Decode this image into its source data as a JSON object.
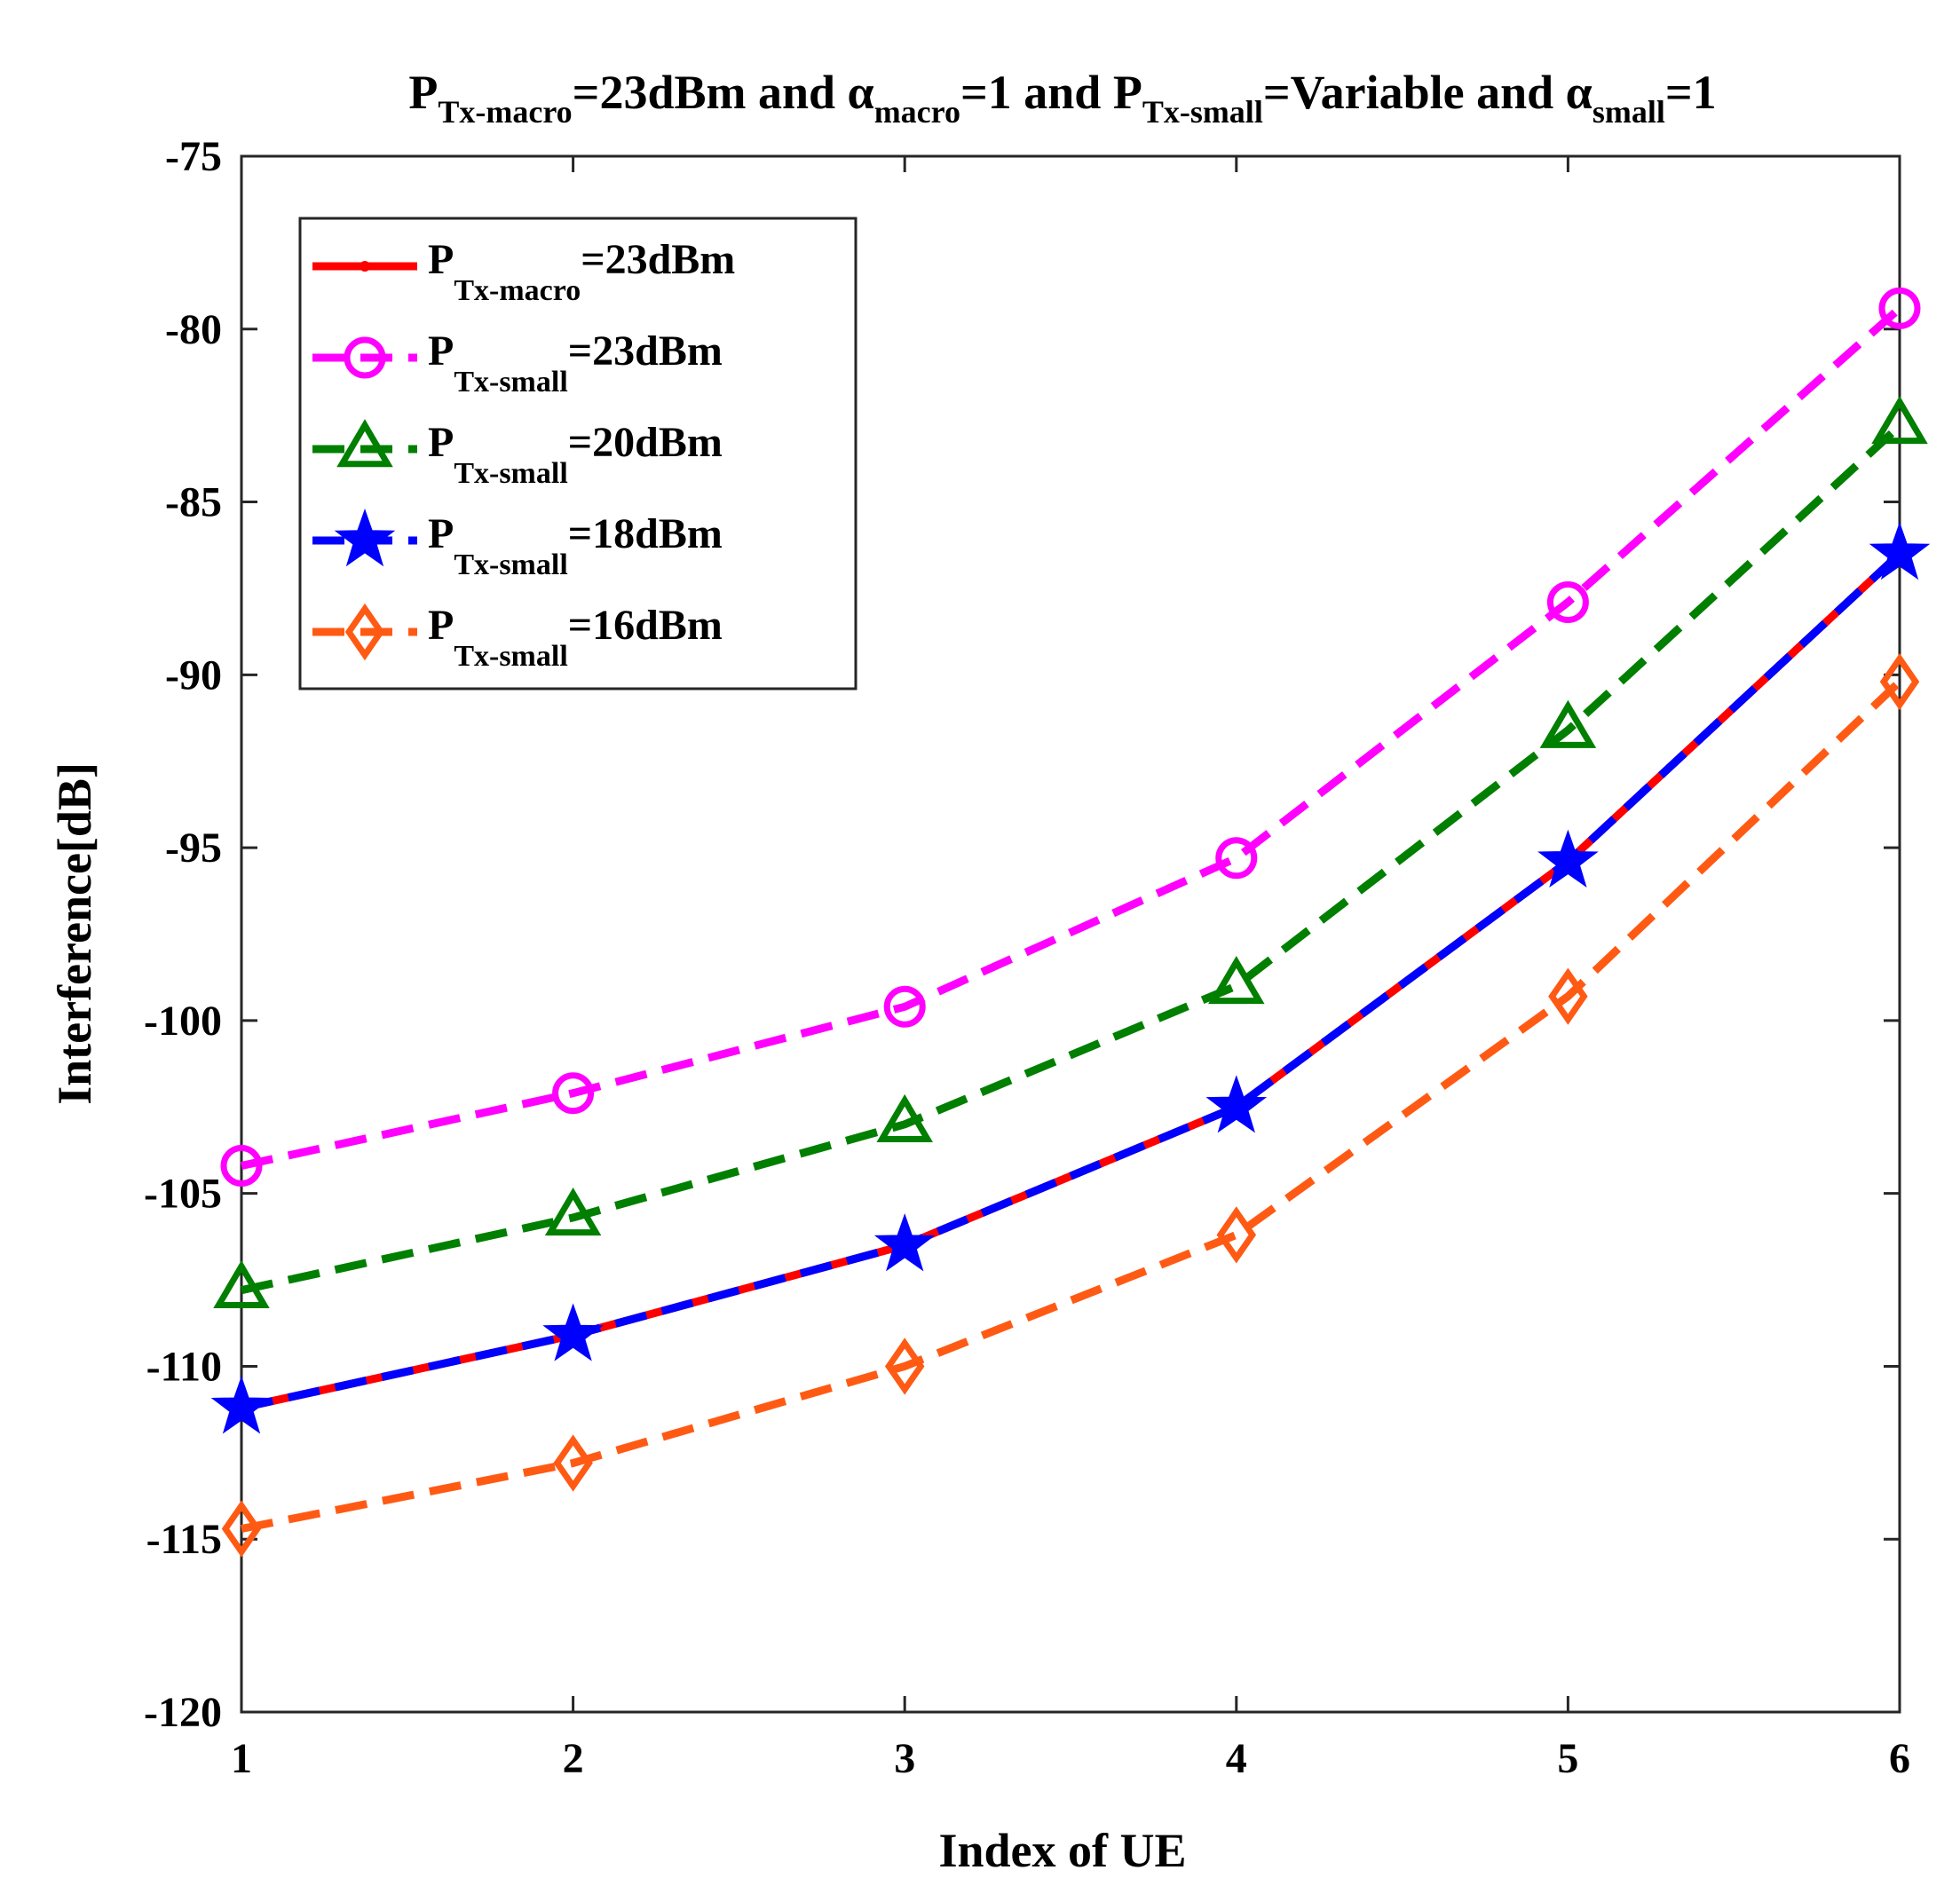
{
  "chart_data": {
    "type": "line",
    "title": {
      "parts": [
        {
          "text": "P",
          "sub": "Tx-macro"
        },
        {
          "text": "=23dBm and α",
          "sub": "macro"
        },
        {
          "text": "=1 and P",
          "sub": "Tx-small"
        },
        {
          "text": "=Variable and α",
          "sub": "small"
        },
        {
          "text": "=1",
          "sub": ""
        }
      ]
    },
    "xlabel": "Index of UE",
    "ylabel": "Interference[dB]",
    "xlim": [
      1,
      6
    ],
    "ylim": [
      -120,
      -75
    ],
    "xticks": [
      1,
      2,
      3,
      4,
      5,
      6
    ],
    "yticks": [
      -120,
      -115,
      -110,
      -105,
      -100,
      -95,
      -90,
      -85,
      -80,
      -75
    ],
    "x": [
      1,
      2,
      3,
      4,
      5,
      6
    ],
    "legend_location": "top-left",
    "series": [
      {
        "name": "P_Tx-macro=23dBm",
        "label_main": "P",
        "label_sub": "Tx-macro",
        "label_rest": "=23dBm",
        "color": "#ff0000",
        "dash": "solid",
        "marker": "point",
        "values": [
          -111.2,
          -109.1,
          -106.5,
          -102.5,
          -95.4,
          -86.5
        ]
      },
      {
        "name": "P_Tx-small=23dBm",
        "label_main": "P",
        "label_sub": "Tx-small",
        "label_rest": "=23dBm",
        "color": "#ff00ff",
        "dash": "dashed",
        "marker": "circle",
        "values": [
          -104.2,
          -102.1,
          -99.6,
          -95.3,
          -87.9,
          -79.4
        ]
      },
      {
        "name": "P_Tx-small=20dBm",
        "label_main": "P",
        "label_sub": "Tx-small",
        "label_rest": "=20dBm",
        "color": "#007f00",
        "dash": "dashed",
        "marker": "triangle",
        "values": [
          -107.8,
          -105.7,
          -103.0,
          -99.0,
          -91.6,
          -82.8
        ]
      },
      {
        "name": "P_Tx-small=18dBm",
        "label_main": "P",
        "label_sub": "Tx-small",
        "label_rest": "=18dBm",
        "color": "#0000ff",
        "dash": "dashed",
        "marker": "star",
        "values": [
          -111.2,
          -109.1,
          -106.5,
          -102.5,
          -95.4,
          -86.5
        ]
      },
      {
        "name": "P_Tx-small=16dBm",
        "label_main": "P",
        "label_sub": "Tx-small",
        "label_rest": "=16dBm",
        "color": "#ff5a14",
        "dash": "dashed",
        "marker": "diamond",
        "values": [
          -114.7,
          -112.8,
          -110.0,
          -106.2,
          -99.3,
          -90.2
        ]
      }
    ]
  }
}
